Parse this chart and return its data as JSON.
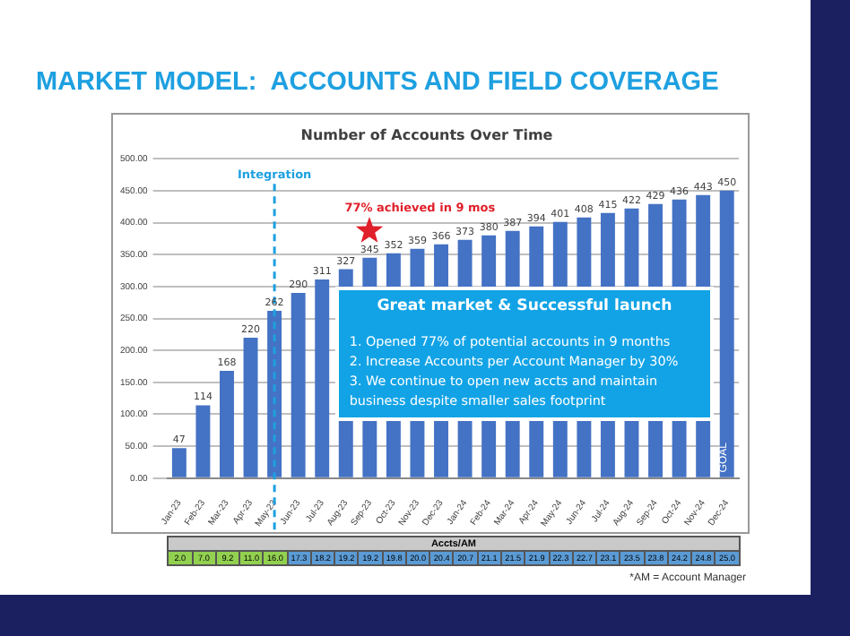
{
  "chart_data": [
    {
      "type": "bar",
      "title": "MARKET MODEL:  ACCOUNTS AND FIELD COVERAGE",
      "subtitle": "Number of Accounts Over Time",
      "categories": [
        "Jan-23",
        "Feb-23",
        "Mar-23",
        "Apr-23",
        "May-23",
        "Jun-23",
        "Jul-23",
        "Aug-23",
        "Sep-23",
        "Oct-23",
        "Nov-23",
        "Dec-23",
        "Jan-24",
        "Feb-24",
        "Mar-24",
        "Apr-24",
        "May-24",
        "Jun-24",
        "Jul-24",
        "Aug-24",
        "Sep-24",
        "Oct-24",
        "Nov-24",
        "Dec-24"
      ],
      "values": [
        47,
        114,
        168,
        220,
        262,
        290,
        311,
        327,
        345,
        352,
        359,
        366,
        373,
        380,
        387,
        394,
        401,
        408,
        415,
        422,
        429,
        436,
        443,
        450
      ],
      "color": "#4472c4",
      "data_labels": true,
      "ylim": [
        0,
        500
      ],
      "yticks": [
        {
          "value": 0,
          "label": "0.00"
        },
        {
          "value": 50,
          "label": "50.00"
        },
        {
          "value": 100,
          "label": "100.00"
        },
        {
          "value": 150,
          "label": "150.00"
        },
        {
          "value": 200,
          "label": "200.00"
        },
        {
          "value": 250,
          "label": "250.00"
        },
        {
          "value": 300,
          "label": "300.00"
        },
        {
          "value": 350,
          "label": "350.00"
        },
        {
          "value": 400,
          "label": "400.00"
        },
        {
          "value": 450,
          "label": "450.00"
        },
        {
          "value": 500,
          "label": "500.00"
        }
      ],
      "grid": "y",
      "legend": false,
      "ref_lines": [
        {
          "axis": "x",
          "value": "May-23",
          "label": "Integration",
          "color": "#1ea0e0",
          "line_style": "dashed"
        }
      ],
      "annotations": [
        {
          "text": "77% achieved in 9 mos",
          "x": "Sep-23",
          "y": 390
        },
        "Great market & Successful launch",
        "1. Opened 77% of potential accounts in 9 months",
        "2. Increase Accounts per Account Manager by 30%",
        "3. We continue to open new accts and maintain business despite smaller sales footprint",
        {
          "text": "GOAL",
          "x": "Dec-24",
          "y": 40
        },
        "*AM = Account Manager"
      ]
    },
    {
      "type": "other",
      "title": "Accts/AM",
      "values": [
        2.0,
        7.0,
        9.2,
        11.0,
        16.0,
        17.3,
        18.2,
        19.2,
        19.2,
        19.8,
        20.0,
        20.4,
        20.7,
        21.1,
        21.5,
        21.9,
        22.3,
        22.7,
        23.1,
        23.5,
        23.8,
        24.2,
        24.8,
        25.0
      ],
      "value_labels": [
        "2.0",
        "7.0",
        "9.2",
        "11.0",
        "16.0",
        "17.3",
        "18.2",
        "19.2",
        "19.2",
        "19.8",
        "20.0",
        "20.4",
        "20.7",
        "21.1",
        "21.5",
        "21.9",
        "22.3",
        "22.7",
        "23.1",
        "23.5",
        "23.8",
        "24.2",
        "24.8",
        "25.0"
      ],
      "colors": [
        "#92d050",
        "#92d050",
        "#92d050",
        "#92d050",
        "#92d050",
        "#5b9bd5",
        "#5b9bd5",
        "#5b9bd5",
        "#5b9bd5",
        "#5b9bd5",
        "#5b9bd5",
        "#5b9bd5",
        "#5b9bd5",
        "#5b9bd5",
        "#5b9bd5",
        "#5b9bd5",
        "#5b9bd5",
        "#5b9bd5",
        "#5b9bd5",
        "#5b9bd5",
        "#5b9bd5",
        "#5b9bd5",
        "#5b9bd5",
        "#5b9bd5"
      ]
    }
  ]
}
